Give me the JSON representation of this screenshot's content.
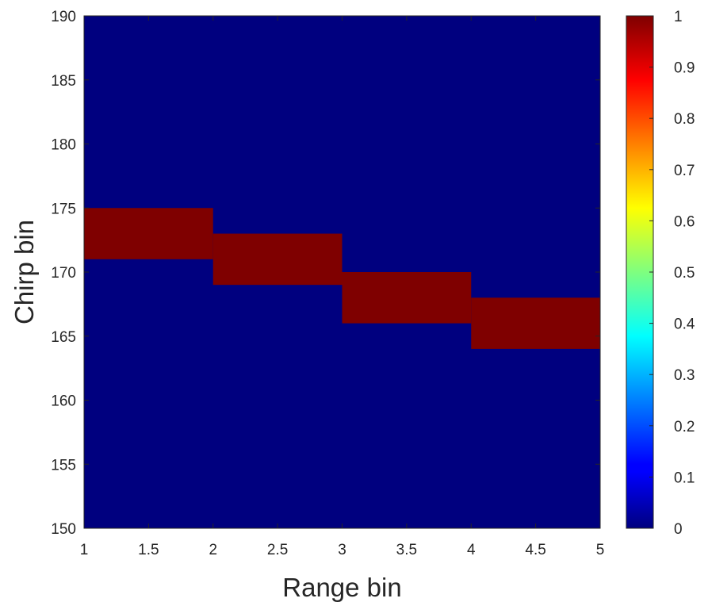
{
  "chart_data": {
    "type": "heatmap",
    "title": "",
    "xlabel": "Range bin",
    "ylabel": "Chirp bin",
    "xlim": [
      1,
      5
    ],
    "ylim": [
      150,
      190
    ],
    "xticks": [
      "1",
      "1.5",
      "2",
      "2.5",
      "3",
      "3.5",
      "4",
      "4.5",
      "5"
    ],
    "yticks": [
      "150",
      "155",
      "160",
      "165",
      "170",
      "175",
      "180",
      "185",
      "190"
    ],
    "colormap": "jet",
    "background_value": 0,
    "background_color": "#00007f",
    "highlight_color": "#7f0000",
    "cells": [
      {
        "x_from": 1,
        "x_to": 2,
        "y_from": 171,
        "y_to": 175,
        "value": 1
      },
      {
        "x_from": 2,
        "x_to": 3,
        "y_from": 169,
        "y_to": 173,
        "value": 1
      },
      {
        "x_from": 3,
        "x_to": 4,
        "y_from": 166,
        "y_to": 170,
        "value": 1
      },
      {
        "x_from": 4,
        "x_to": 5,
        "y_from": 164,
        "y_to": 168,
        "value": 1
      }
    ],
    "colorbar": {
      "range": [
        0,
        1
      ],
      "ticks": [
        "0",
        "0.1",
        "0.2",
        "0.3",
        "0.4",
        "0.5",
        "0.6",
        "0.7",
        "0.8",
        "0.9",
        "1"
      ]
    }
  }
}
